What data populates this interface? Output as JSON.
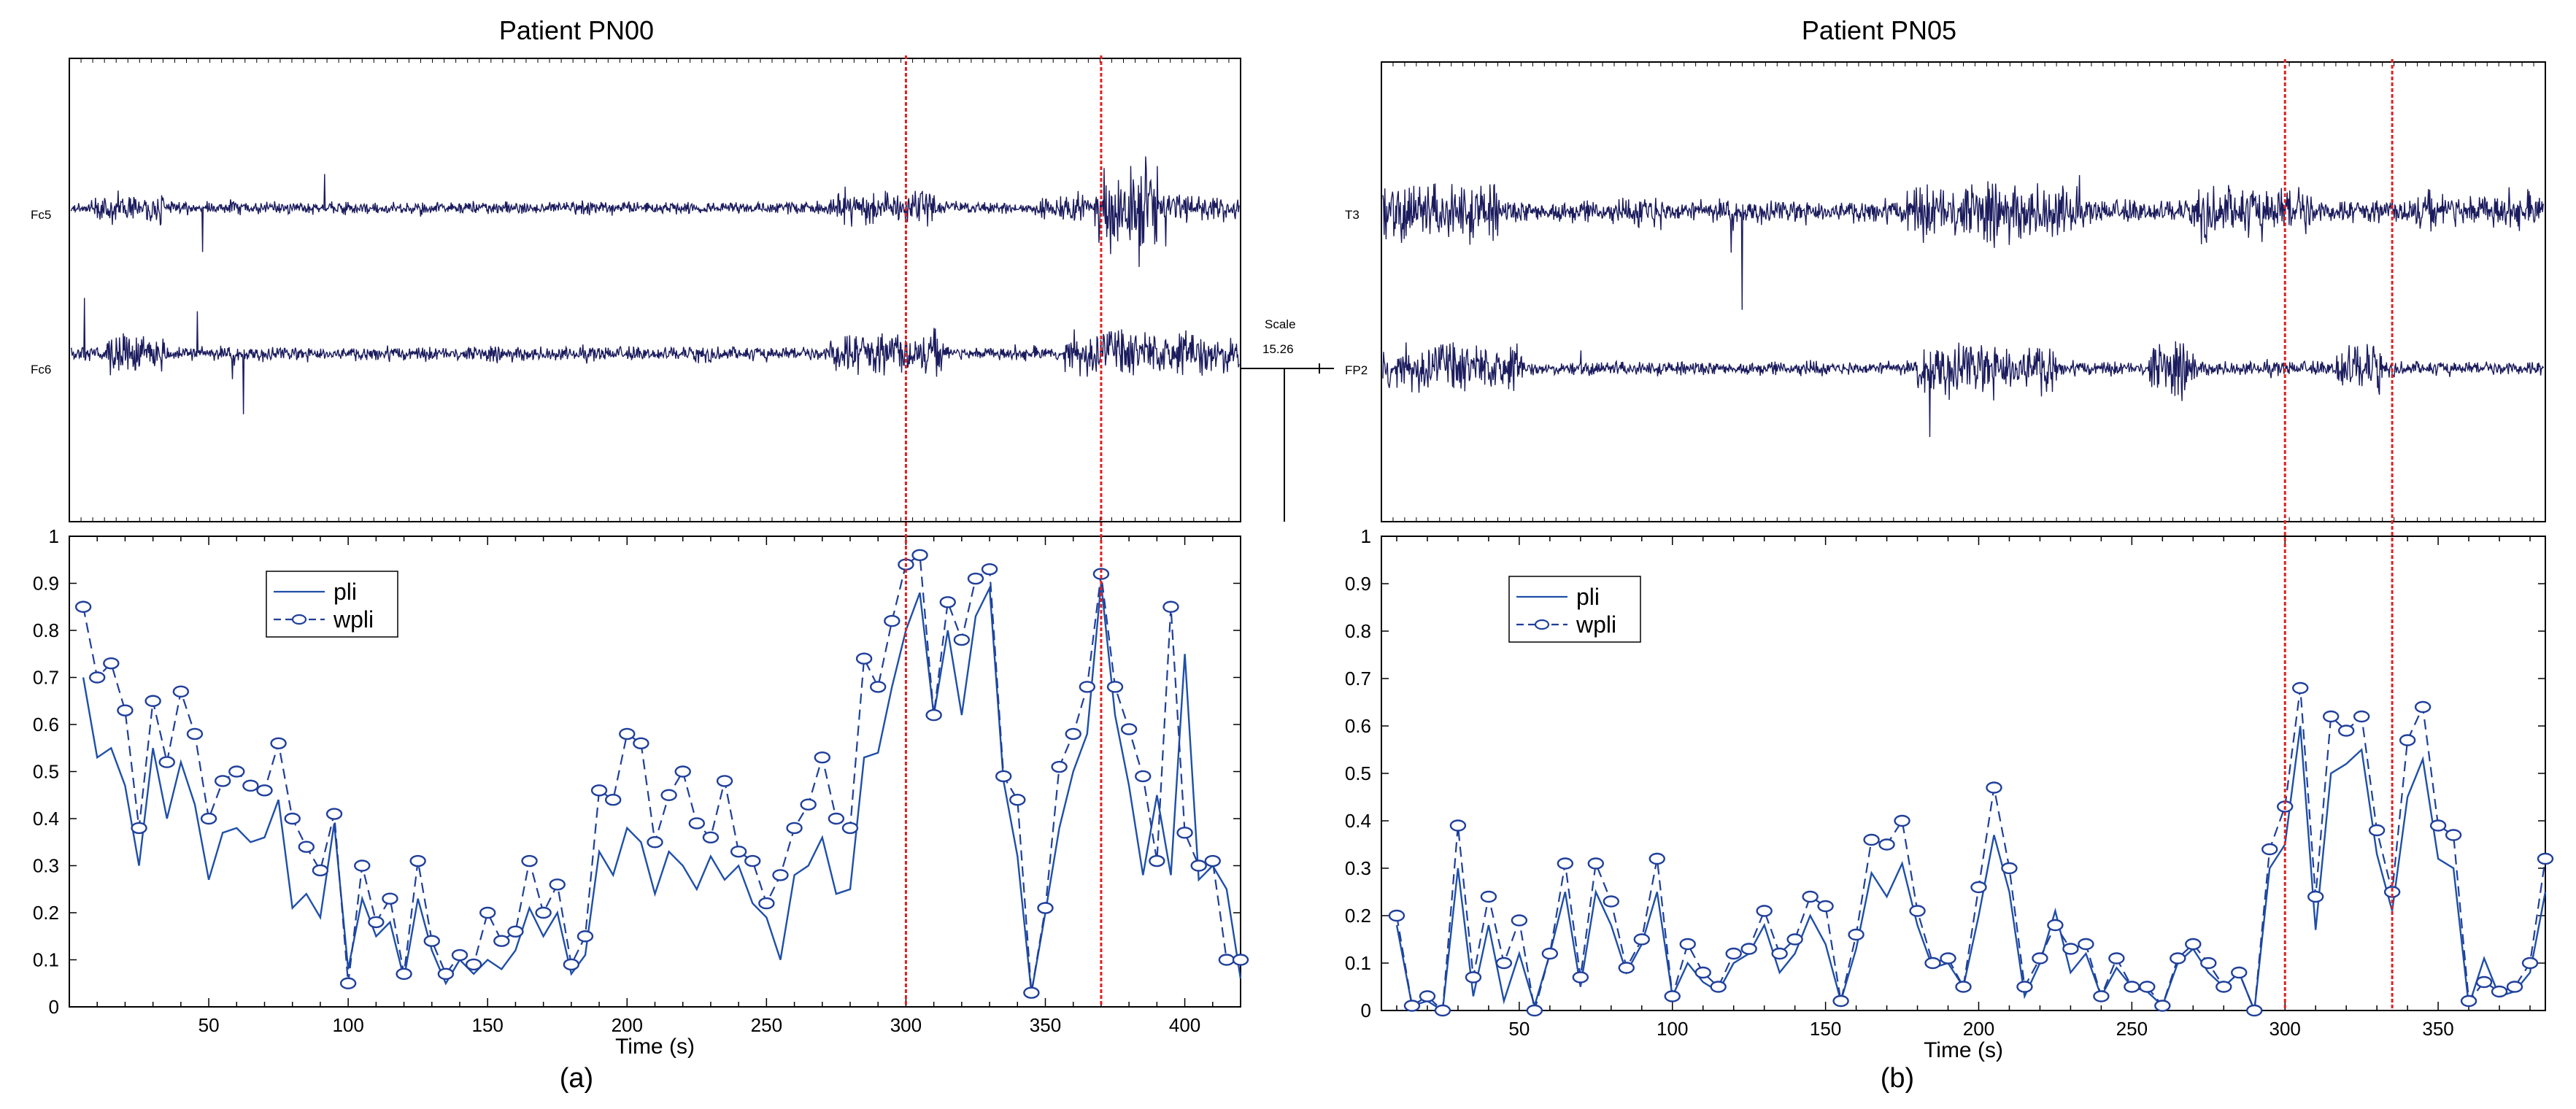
{
  "panels": [
    {
      "title": "Patient PN00",
      "caption": "(a)",
      "eeg": {
        "channels": [
          "Fc5",
          "Fc6"
        ],
        "scale_label": "Scale",
        "scale_value": "15.26"
      }
    },
    {
      "title": "Patient PN05",
      "caption": "(b)",
      "eeg": {
        "channels": [
          "T3",
          "FP2"
        ],
        "scale_label": "",
        "scale_value": ""
      }
    }
  ],
  "colors": {
    "eeg_trace": "#1b1b5e",
    "pli": "#1f4fa8",
    "wpli": "#1f3f9a",
    "marker": "#e02020",
    "axis": "#000000"
  },
  "chart_data": [
    {
      "type": "line",
      "panel": "a",
      "xlabel": "Time (s)",
      "ylabel": "",
      "xlim": [
        0,
        420
      ],
      "ylim": [
        0,
        1
      ],
      "xticks": [
        50,
        100,
        150,
        200,
        250,
        300,
        350,
        400
      ],
      "yticks": [
        0,
        0.1,
        0.2,
        0.3,
        0.4,
        0.5,
        0.6,
        0.7,
        0.8,
        0.9,
        1
      ],
      "ytick_labels": [
        "0",
        "0.1",
        "0.2",
        "0.3",
        "0.4",
        "0.5",
        "0.6",
        "0.7",
        "0.8",
        "0.9",
        "1"
      ],
      "markers": [
        300,
        370
      ],
      "legend": "top-left",
      "series": [
        {
          "name": "pli",
          "style": "solid",
          "x": [
            5,
            10,
            15,
            20,
            25,
            30,
            35,
            40,
            45,
            50,
            55,
            60,
            65,
            70,
            75,
            80,
            85,
            90,
            95,
            100,
            105,
            110,
            115,
            120,
            125,
            130,
            135,
            140,
            145,
            150,
            155,
            160,
            165,
            170,
            175,
            180,
            185,
            190,
            195,
            200,
            205,
            210,
            215,
            220,
            225,
            230,
            235,
            240,
            245,
            250,
            255,
            260,
            265,
            270,
            275,
            280,
            285,
            290,
            295,
            300,
            305,
            310,
            315,
            320,
            325,
            330,
            335,
            340,
            345,
            350,
            355,
            360,
            365,
            370,
            375,
            380,
            385,
            390,
            395,
            400,
            405,
            410,
            415,
            420
          ],
          "y": [
            0.7,
            0.53,
            0.55,
            0.47,
            0.3,
            0.55,
            0.4,
            0.52,
            0.43,
            0.27,
            0.37,
            0.38,
            0.35,
            0.36,
            0.44,
            0.21,
            0.24,
            0.19,
            0.39,
            0.08,
            0.23,
            0.15,
            0.18,
            0.06,
            0.23,
            0.12,
            0.05,
            0.1,
            0.07,
            0.1,
            0.08,
            0.12,
            0.21,
            0.15,
            0.2,
            0.07,
            0.11,
            0.33,
            0.28,
            0.38,
            0.35,
            0.24,
            0.33,
            0.3,
            0.25,
            0.32,
            0.27,
            0.3,
            0.22,
            0.19,
            0.1,
            0.28,
            0.3,
            0.36,
            0.24,
            0.25,
            0.53,
            0.54,
            0.68,
            0.8,
            0.88,
            0.62,
            0.8,
            0.62,
            0.83,
            0.89,
            0.48,
            0.32,
            0.03,
            0.2,
            0.38,
            0.5,
            0.58,
            0.9,
            0.62,
            0.47,
            0.28,
            0.45,
            0.28,
            0.75,
            0.27,
            0.3,
            0.25,
            0.06
          ]
        },
        {
          "name": "wpli",
          "style": "dashed-circle",
          "x": [
            5,
            10,
            15,
            20,
            25,
            30,
            35,
            40,
            45,
            50,
            55,
            60,
            65,
            70,
            75,
            80,
            85,
            90,
            95,
            100,
            105,
            110,
            115,
            120,
            125,
            130,
            135,
            140,
            145,
            150,
            155,
            160,
            165,
            170,
            175,
            180,
            185,
            190,
            195,
            200,
            205,
            210,
            215,
            220,
            225,
            230,
            235,
            240,
            245,
            250,
            255,
            260,
            265,
            270,
            275,
            280,
            285,
            290,
            295,
            300,
            305,
            310,
            315,
            320,
            325,
            330,
            335,
            340,
            345,
            350,
            355,
            360,
            365,
            370,
            375,
            380,
            385,
            390,
            395,
            400,
            405,
            410,
            415,
            420
          ],
          "y": [
            0.85,
            0.7,
            0.73,
            0.63,
            0.38,
            0.65,
            0.52,
            0.67,
            0.58,
            0.4,
            0.48,
            0.5,
            0.47,
            0.46,
            0.56,
            0.4,
            0.34,
            0.29,
            0.41,
            0.05,
            0.3,
            0.18,
            0.23,
            0.07,
            0.31,
            0.14,
            0.07,
            0.11,
            0.09,
            0.2,
            0.14,
            0.16,
            0.31,
            0.2,
            0.26,
            0.09,
            0.15,
            0.46,
            0.44,
            0.58,
            0.56,
            0.35,
            0.45,
            0.5,
            0.39,
            0.36,
            0.48,
            0.33,
            0.31,
            0.22,
            0.28,
            0.38,
            0.43,
            0.53,
            0.4,
            0.38,
            0.74,
            0.68,
            0.82,
            0.94,
            0.96,
            0.62,
            0.86,
            0.78,
            0.91,
            0.93,
            0.49,
            0.44,
            0.03,
            0.21,
            0.51,
            0.58,
            0.68,
            0.92,
            0.68,
            0.59,
            0.49,
            0.31,
            0.85,
            0.37,
            0.3,
            0.31,
            0.1,
            0.1
          ]
        }
      ]
    },
    {
      "type": "line",
      "panel": "b",
      "xlabel": "Time (s)",
      "ylabel": "",
      "xlim": [
        5,
        385
      ],
      "ylim": [
        0,
        1
      ],
      "xticks": [
        50,
        100,
        150,
        200,
        250,
        300,
        350
      ],
      "yticks": [
        0,
        0.1,
        0.2,
        0.3,
        0.4,
        0.5,
        0.6,
        0.7,
        0.8,
        0.9,
        1
      ],
      "ytick_labels": [
        "0",
        "0.1",
        "0.2",
        "0.3",
        "0.4",
        "0.5",
        "0.6",
        "0.7",
        "0.8",
        "0.9",
        "1"
      ],
      "markers": [
        300,
        335
      ],
      "legend": "top-left",
      "series": [
        {
          "name": "pli",
          "style": "solid",
          "x": [
            10,
            15,
            20,
            25,
            30,
            35,
            40,
            45,
            50,
            55,
            60,
            65,
            70,
            75,
            80,
            85,
            90,
            95,
            100,
            105,
            110,
            115,
            120,
            125,
            130,
            135,
            140,
            145,
            150,
            155,
            160,
            165,
            170,
            175,
            180,
            185,
            190,
            195,
            200,
            205,
            210,
            215,
            220,
            225,
            230,
            235,
            240,
            245,
            250,
            255,
            260,
            265,
            270,
            275,
            280,
            285,
            290,
            295,
            300,
            305,
            310,
            315,
            320,
            325,
            330,
            335,
            340,
            345,
            350,
            355,
            360,
            365,
            370,
            375,
            380,
            385
          ],
          "y": [
            0.18,
            0.01,
            0.02,
            0.0,
            0.3,
            0.03,
            0.18,
            0.02,
            0.12,
            0.01,
            0.12,
            0.25,
            0.05,
            0.25,
            0.18,
            0.08,
            0.14,
            0.25,
            0.03,
            0.1,
            0.06,
            0.04,
            0.1,
            0.12,
            0.18,
            0.08,
            0.12,
            0.2,
            0.14,
            0.02,
            0.13,
            0.29,
            0.24,
            0.31,
            0.18,
            0.09,
            0.1,
            0.05,
            0.2,
            0.37,
            0.25,
            0.03,
            0.1,
            0.21,
            0.08,
            0.12,
            0.03,
            0.09,
            0.05,
            0.04,
            0.01,
            0.1,
            0.13,
            0.08,
            0.05,
            0.08,
            0.0,
            0.3,
            0.35,
            0.6,
            0.17,
            0.5,
            0.52,
            0.55,
            0.33,
            0.21,
            0.45,
            0.53,
            0.32,
            0.3,
            0.01,
            0.11,
            0.03,
            0.04,
            0.08,
            0.25
          ]
        },
        {
          "name": "wpli",
          "style": "dashed-circle",
          "x": [
            10,
            15,
            20,
            25,
            30,
            35,
            40,
            45,
            50,
            55,
            60,
            65,
            70,
            75,
            80,
            85,
            90,
            95,
            100,
            105,
            110,
            115,
            120,
            125,
            130,
            135,
            140,
            145,
            150,
            155,
            160,
            165,
            170,
            175,
            180,
            185,
            190,
            195,
            200,
            205,
            210,
            215,
            220,
            225,
            230,
            235,
            240,
            245,
            250,
            255,
            260,
            265,
            270,
            275,
            280,
            285,
            290,
            295,
            300,
            305,
            310,
            315,
            320,
            325,
            330,
            335,
            340,
            345,
            350,
            355,
            360,
            365,
            370,
            375,
            380,
            385
          ],
          "y": [
            0.2,
            0.01,
            0.03,
            0.0,
            0.39,
            0.07,
            0.24,
            0.1,
            0.19,
            0.0,
            0.12,
            0.31,
            0.07,
            0.31,
            0.23,
            0.09,
            0.15,
            0.32,
            0.03,
            0.14,
            0.08,
            0.05,
            0.12,
            0.13,
            0.21,
            0.12,
            0.15,
            0.24,
            0.22,
            0.02,
            0.16,
            0.36,
            0.35,
            0.4,
            0.21,
            0.1,
            0.11,
            0.05,
            0.26,
            0.47,
            0.3,
            0.05,
            0.11,
            0.18,
            0.13,
            0.14,
            0.03,
            0.11,
            0.05,
            0.05,
            0.01,
            0.11,
            0.14,
            0.1,
            0.05,
            0.08,
            0.0,
            0.34,
            0.43,
            0.68,
            0.24,
            0.62,
            0.59,
            0.62,
            0.38,
            0.25,
            0.57,
            0.64,
            0.39,
            0.37,
            0.02,
            0.06,
            0.04,
            0.05,
            0.1,
            0.32
          ]
        }
      ]
    }
  ]
}
